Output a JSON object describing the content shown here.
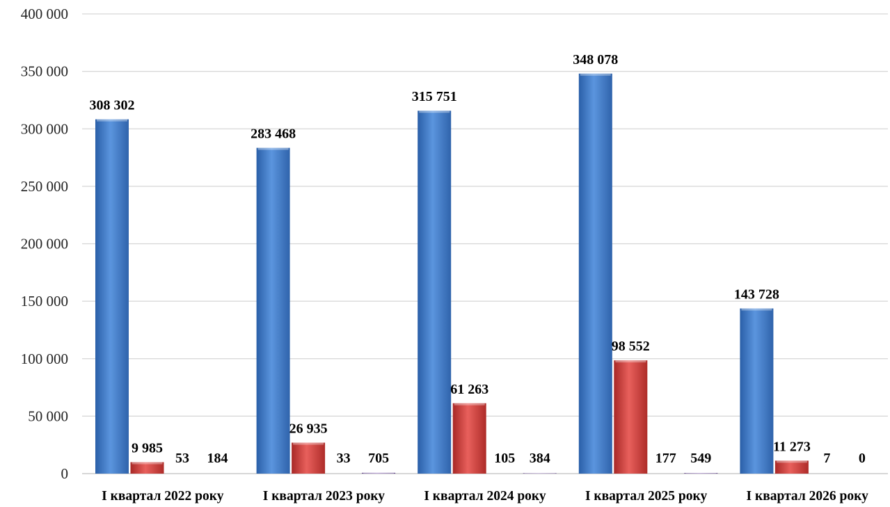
{
  "chart_data": {
    "type": "bar",
    "categories": [
      "I квартал 2022 року",
      "I квартал 2023 року",
      "I квартал 2024 року",
      "I квартал 2025 року",
      "I квартал 2026 року"
    ],
    "series": [
      {
        "values": [
          308302,
          283468,
          315751,
          348078,
          143728
        ],
        "labels": [
          "308 302",
          "283 468",
          "315 751",
          "348 078",
          "143 728"
        ],
        "color": "#3d78c8"
      },
      {
        "values": [
          9985,
          26935,
          61263,
          98552,
          11273
        ],
        "labels": [
          "9 985",
          "26 935",
          "61 263",
          "98 552",
          "11 273"
        ],
        "color": "#d43c3a"
      },
      {
        "values": [
          53,
          33,
          105,
          177,
          7
        ],
        "labels": [
          "53",
          "33",
          "105",
          "177",
          "7"
        ],
        "color": "#4ea04a"
      },
      {
        "values": [
          184,
          705,
          384,
          549,
          0
        ],
        "labels": [
          "184",
          "705",
          "384",
          "549",
          "0"
        ],
        "color": "#7d5aa8"
      }
    ],
    "ylim": [
      0,
      400000
    ],
    "yticks": [
      0,
      50000,
      100000,
      150000,
      200000,
      250000,
      300000,
      350000,
      400000
    ],
    "ytick_labels": [
      "0",
      "50 000",
      "100 000",
      "150 000",
      "200 000",
      "250 000",
      "300 000",
      "350 000",
      "400 000"
    ],
    "grid": true,
    "legend": "none"
  }
}
